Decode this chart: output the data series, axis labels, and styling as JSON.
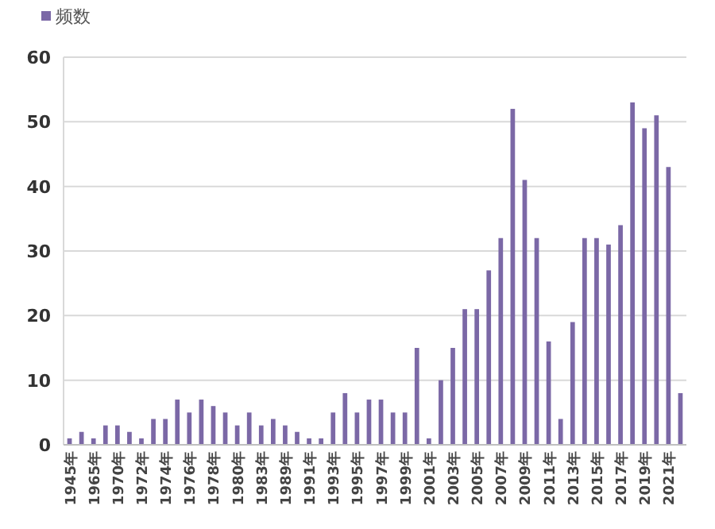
{
  "chart_data": {
    "type": "bar",
    "categories": [
      "1945年",
      null,
      "1965年",
      null,
      "1970年",
      null,
      "1972年",
      null,
      "1974年",
      null,
      "1976年",
      null,
      "1978年",
      null,
      "1980年",
      null,
      "1983年",
      null,
      "1989年",
      null,
      "1991年",
      null,
      "1993年",
      null,
      "1995年",
      null,
      "1997年",
      null,
      "1999年",
      null,
      "2001年",
      null,
      "2003年",
      null,
      "2005年",
      null,
      "2007年",
      null,
      "2009年",
      null,
      "2011年",
      null,
      "2013年",
      null,
      "2015年",
      null,
      "2017年",
      null,
      "2019年",
      null,
      "2021年",
      null
    ],
    "series": [
      {
        "name": "频数",
        "color": "#7b68a6",
        "values": [
          1,
          2,
          1,
          3,
          3,
          2,
          1,
          4,
          4,
          7,
          5,
          7,
          6,
          5,
          3,
          5,
          3,
          4,
          3,
          2,
          1,
          1,
          5,
          8,
          5,
          7,
          7,
          5,
          5,
          15,
          1,
          10,
          15,
          21,
          21,
          27,
          32,
          52,
          41,
          32,
          16,
          4,
          19,
          32,
          32,
          31,
          34,
          53,
          49,
          51,
          43,
          8
        ]
      }
    ],
    "ylim": [
      0,
      60
    ],
    "yticks": [
      0,
      10,
      20,
      30,
      40,
      50,
      60
    ],
    "grid": "y",
    "legend": "top left"
  }
}
